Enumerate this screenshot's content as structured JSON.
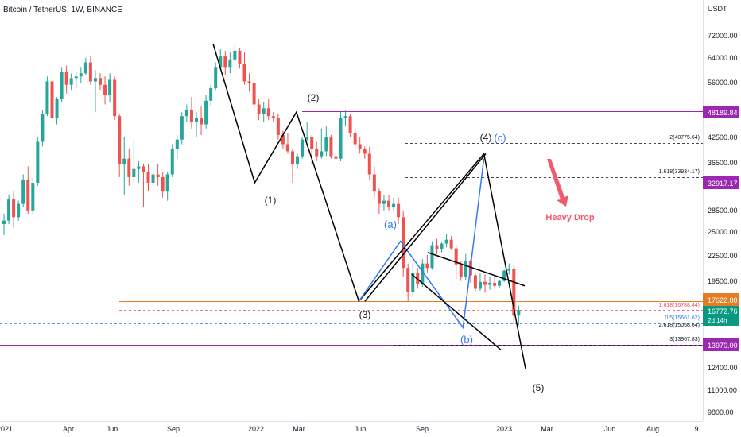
{
  "header": {
    "title": "Bitcoin / TetherUS, 1W, BINANCE"
  },
  "price_axis": {
    "currency": "USDT",
    "ticks": [
      "72000.00",
      "64000.00",
      "56000.00",
      "48189.84",
      "42500.00",
      "36500.00",
      "32917.17",
      "28500.00",
      "25000.00",
      "22500.00",
      "19500.00",
      "17622.00",
      "16772.76",
      "13970.00",
      "12400.00",
      "11000.00",
      "9800.00"
    ],
    "last_price": "16772.76",
    "countdown": "2d 14h"
  },
  "time_axis": {
    "ticks": [
      "2021",
      "Apr",
      "Jun",
      "Sep",
      "2022",
      "Mar",
      "Jun",
      "Sep",
      "2023",
      "Mar",
      "Jun",
      "Aug",
      "9"
    ]
  },
  "wave_labels": {
    "w1": "(1)",
    "w2": "(2)",
    "w3": "(3)",
    "w4": "(4)",
    "w5": "(5)",
    "wa": "(a)",
    "wb": "(b)",
    "wc": "(c)"
  },
  "fib_labels": {
    "f2": "2(40775.64)",
    "f1618_top": "1.618(33934.17)",
    "f1618_low": "1.618(16788.44)",
    "f05": "0.5(15661.62)",
    "f2618": "2.618(15058.64)",
    "f3": "3(13967.83)"
  },
  "annotation": {
    "text": "Heavy Drop"
  },
  "colors": {
    "up": "#26a69a",
    "down": "#ef5350",
    "wave": "#000000",
    "wave_blue": "#3179f5",
    "level_purple": "#9c27b0",
    "level_orange": "#e57b22",
    "annotation": "#f05a6e",
    "teal": "#089981"
  },
  "chart_data": {
    "type": "candlestick",
    "title": "Bitcoin / TetherUS, 1W, BINANCE",
    "y_unit": "USDT",
    "y_scale": "log",
    "ylim": [
      9400,
      80000
    ],
    "x_range": [
      "2021-01",
      "2023-09"
    ],
    "last_price": 16772.76,
    "horizontal_levels": [
      {
        "price": 48189.84,
        "color": "purple"
      },
      {
        "price": 32917.17,
        "color": "purple"
      },
      {
        "price": 17622.0,
        "color": "orange"
      },
      {
        "price": 13970.0,
        "color": "purple"
      }
    ],
    "fib_levels": [
      {
        "ratio": 2,
        "price": 40775.64
      },
      {
        "ratio": 1.618,
        "price": 33934.17
      },
      {
        "ratio": 1.618,
        "price": 16788.44
      },
      {
        "ratio": 0.5,
        "price": 15661.62
      },
      {
        "ratio": 2.618,
        "price": 15058.64
      },
      {
        "ratio": 3,
        "price": 13967.83
      }
    ],
    "wave_points": [
      {
        "label": "start",
        "date": "2021-11",
        "price": 69000
      },
      {
        "label": "(1)",
        "date": "2022-01",
        "price": 33000
      },
      {
        "label": "(2)",
        "date": "2022-03",
        "price": 48000
      },
      {
        "label": "(3)",
        "date": "2022-06",
        "price": 17600
      },
      {
        "label": "(4)",
        "date": "2022-12",
        "price": 38500
      },
      {
        "label": "(5)",
        "date": "2023-02",
        "price": 12300
      }
    ],
    "corrective_points": [
      {
        "label": "start",
        "date": "2022-06",
        "price": 17600
      },
      {
        "label": "(a)",
        "date": "2022-08",
        "price": 24200
      },
      {
        "label": "(b)",
        "date": "2022-11",
        "price": 15300
      },
      {
        "label": "(c)",
        "date": "2022-12",
        "price": 37500
      }
    ],
    "candles": [
      {
        "o": 26500,
        "h": 28000,
        "l": 25000,
        "c": 27000
      },
      {
        "o": 27000,
        "h": 31000,
        "l": 26500,
        "c": 30200
      },
      {
        "o": 30200,
        "h": 31500,
        "l": 26000,
        "c": 27500
      },
      {
        "o": 27500,
        "h": 30000,
        "l": 27000,
        "c": 29500
      },
      {
        "o": 29500,
        "h": 34500,
        "l": 29000,
        "c": 33500
      },
      {
        "o": 33500,
        "h": 36000,
        "l": 28000,
        "c": 28500
      },
      {
        "o": 28500,
        "h": 34000,
        "l": 28000,
        "c": 33000
      },
      {
        "o": 33000,
        "h": 42000,
        "l": 32500,
        "c": 41000
      },
      {
        "o": 41000,
        "h": 48500,
        "l": 40000,
        "c": 47500
      },
      {
        "o": 47500,
        "h": 58000,
        "l": 47000,
        "c": 56500
      },
      {
        "o": 56500,
        "h": 58000,
        "l": 44000,
        "c": 46500
      },
      {
        "o": 46500,
        "h": 52000,
        "l": 45000,
        "c": 51500
      },
      {
        "o": 51500,
        "h": 61000,
        "l": 50500,
        "c": 59500
      },
      {
        "o": 59500,
        "h": 61500,
        "l": 53000,
        "c": 55500
      },
      {
        "o": 55500,
        "h": 59000,
        "l": 54000,
        "c": 57500
      },
      {
        "o": 57500,
        "h": 59500,
        "l": 54500,
        "c": 58000
      },
      {
        "o": 58000,
        "h": 61000,
        "l": 56000,
        "c": 59000
      },
      {
        "o": 59000,
        "h": 64000,
        "l": 58500,
        "c": 62500
      },
      {
        "o": 62500,
        "h": 64500,
        "l": 55500,
        "c": 56500
      },
      {
        "o": 56500,
        "h": 60000,
        "l": 48000,
        "c": 57500
      },
      {
        "o": 57500,
        "h": 59000,
        "l": 54000,
        "c": 55500
      },
      {
        "o": 55500,
        "h": 58000,
        "l": 50000,
        "c": 52500
      },
      {
        "o": 52500,
        "h": 59000,
        "l": 50500,
        "c": 57000
      },
      {
        "o": 57000,
        "h": 58000,
        "l": 46000,
        "c": 47000
      },
      {
        "o": 47000,
        "h": 47500,
        "l": 34000,
        "c": 36500
      },
      {
        "o": 36500,
        "h": 42000,
        "l": 31000,
        "c": 37500
      },
      {
        "o": 37500,
        "h": 39500,
        "l": 32500,
        "c": 34000
      },
      {
        "o": 34000,
        "h": 41500,
        "l": 33000,
        "c": 35500
      },
      {
        "o": 35500,
        "h": 37000,
        "l": 33000,
        "c": 36000
      },
      {
        "o": 36000,
        "h": 36500,
        "l": 29000,
        "c": 35000
      },
      {
        "o": 35000,
        "h": 36500,
        "l": 31500,
        "c": 33000
      },
      {
        "o": 33000,
        "h": 35500,
        "l": 31000,
        "c": 34500
      },
      {
        "o": 34500,
        "h": 36500,
        "l": 32500,
        "c": 34000
      },
      {
        "o": 34000,
        "h": 35000,
        "l": 30500,
        "c": 31500
      },
      {
        "o": 31500,
        "h": 35000,
        "l": 30000,
        "c": 34500
      },
      {
        "o": 34500,
        "h": 40500,
        "l": 34000,
        "c": 39500
      },
      {
        "o": 39500,
        "h": 42500,
        "l": 37500,
        "c": 41500
      },
      {
        "o": 41500,
        "h": 48000,
        "l": 40500,
        "c": 47000
      },
      {
        "o": 47000,
        "h": 50000,
        "l": 45500,
        "c": 48500
      },
      {
        "o": 48500,
        "h": 52000,
        "l": 44000,
        "c": 45500
      },
      {
        "o": 45500,
        "h": 48000,
        "l": 42000,
        "c": 46500
      },
      {
        "o": 46500,
        "h": 49500,
        "l": 42500,
        "c": 45000
      },
      {
        "o": 45000,
        "h": 52500,
        "l": 44000,
        "c": 51000
      },
      {
        "o": 51000,
        "h": 55500,
        "l": 49500,
        "c": 54500
      },
      {
        "o": 54500,
        "h": 62500,
        "l": 54000,
        "c": 61000
      },
      {
        "o": 61000,
        "h": 67000,
        "l": 60000,
        "c": 64500
      },
      {
        "o": 64500,
        "h": 66500,
        "l": 58500,
        "c": 61000
      },
      {
        "o": 61000,
        "h": 66000,
        "l": 59000,
        "c": 63500
      },
      {
        "o": 63500,
        "h": 69000,
        "l": 62000,
        "c": 66500
      },
      {
        "o": 66500,
        "h": 67500,
        "l": 60500,
        "c": 62000
      },
      {
        "o": 62000,
        "h": 66000,
        "l": 55500,
        "c": 56500
      },
      {
        "o": 56500,
        "h": 59000,
        "l": 53500,
        "c": 56000
      },
      {
        "o": 56000,
        "h": 57500,
        "l": 48000,
        "c": 50000
      },
      {
        "o": 50000,
        "h": 51500,
        "l": 46000,
        "c": 47500
      },
      {
        "o": 47500,
        "h": 50500,
        "l": 45500,
        "c": 49000
      },
      {
        "o": 49000,
        "h": 51500,
        "l": 46000,
        "c": 47000
      },
      {
        "o": 47000,
        "h": 48000,
        "l": 45500,
        "c": 46500
      },
      {
        "o": 46500,
        "h": 47500,
        "l": 41500,
        "c": 42500
      },
      {
        "o": 42500,
        "h": 43500,
        "l": 39500,
        "c": 40500
      },
      {
        "o": 40500,
        "h": 43000,
        "l": 38500,
        "c": 39000
      },
      {
        "o": 39000,
        "h": 39500,
        "l": 33000,
        "c": 36500
      },
      {
        "o": 36500,
        "h": 38500,
        "l": 35500,
        "c": 38000
      },
      {
        "o": 38000,
        "h": 42000,
        "l": 37500,
        "c": 41500
      },
      {
        "o": 41500,
        "h": 45500,
        "l": 41000,
        "c": 42000
      },
      {
        "o": 42000,
        "h": 42500,
        "l": 36500,
        "c": 39500
      },
      {
        "o": 39500,
        "h": 41000,
        "l": 37000,
        "c": 38000
      },
      {
        "o": 38000,
        "h": 44000,
        "l": 37500,
        "c": 39000
      },
      {
        "o": 39000,
        "h": 44500,
        "l": 38000,
        "c": 42000
      },
      {
        "o": 42000,
        "h": 42500,
        "l": 37500,
        "c": 38000
      },
      {
        "o": 38000,
        "h": 39500,
        "l": 37000,
        "c": 37500
      },
      {
        "o": 37500,
        "h": 48000,
        "l": 37000,
        "c": 46500
      },
      {
        "o": 46500,
        "h": 48500,
        "l": 44500,
        "c": 47000
      },
      {
        "o": 47000,
        "h": 47500,
        "l": 42000,
        "c": 43000
      },
      {
        "o": 43000,
        "h": 43500,
        "l": 39500,
        "c": 40500
      },
      {
        "o": 40500,
        "h": 42000,
        "l": 38500,
        "c": 39500
      },
      {
        "o": 39500,
        "h": 40000,
        "l": 37500,
        "c": 38500
      },
      {
        "o": 38500,
        "h": 40000,
        "l": 33500,
        "c": 34500
      },
      {
        "o": 34500,
        "h": 36000,
        "l": 30500,
        "c": 31500
      },
      {
        "o": 31500,
        "h": 32000,
        "l": 28000,
        "c": 29500
      },
      {
        "o": 29500,
        "h": 31000,
        "l": 28500,
        "c": 30000
      },
      {
        "o": 30000,
        "h": 31000,
        "l": 28500,
        "c": 29000
      },
      {
        "o": 29000,
        "h": 30500,
        "l": 28500,
        "c": 29500
      },
      {
        "o": 29500,
        "h": 30500,
        "l": 26500,
        "c": 27500
      },
      {
        "o": 27500,
        "h": 28500,
        "l": 20000,
        "c": 21000
      },
      {
        "o": 21000,
        "h": 21500,
        "l": 17600,
        "c": 18500
      },
      {
        "o": 18500,
        "h": 21500,
        "l": 18000,
        "c": 20500
      },
      {
        "o": 20500,
        "h": 21000,
        "l": 18800,
        "c": 19300
      },
      {
        "o": 19300,
        "h": 22000,
        "l": 19000,
        "c": 21500
      },
      {
        "o": 21500,
        "h": 22500,
        "l": 20500,
        "c": 21000
      },
      {
        "o": 21000,
        "h": 24200,
        "l": 20800,
        "c": 23700
      },
      {
        "o": 23700,
        "h": 24500,
        "l": 22600,
        "c": 23200
      },
      {
        "o": 23200,
        "h": 24100,
        "l": 22800,
        "c": 23900
      },
      {
        "o": 23900,
        "h": 25200,
        "l": 23400,
        "c": 24400
      },
      {
        "o": 24400,
        "h": 24900,
        "l": 23100,
        "c": 23300
      },
      {
        "o": 23300,
        "h": 23600,
        "l": 19800,
        "c": 21400
      },
      {
        "o": 21400,
        "h": 21800,
        "l": 19600,
        "c": 20000
      },
      {
        "o": 20000,
        "h": 22600,
        "l": 19700,
        "c": 21800
      },
      {
        "o": 21800,
        "h": 22000,
        "l": 19400,
        "c": 20200
      },
      {
        "o": 20200,
        "h": 20500,
        "l": 18500,
        "c": 18800
      },
      {
        "o": 18800,
        "h": 20400,
        "l": 18600,
        "c": 19500
      },
      {
        "o": 19500,
        "h": 20300,
        "l": 18400,
        "c": 19200
      },
      {
        "o": 19200,
        "h": 20000,
        "l": 18700,
        "c": 19400
      },
      {
        "o": 19400,
        "h": 20000,
        "l": 19000,
        "c": 19100
      },
      {
        "o": 19100,
        "h": 19700,
        "l": 18900,
        "c": 19600
      },
      {
        "o": 19600,
        "h": 20800,
        "l": 19500,
        "c": 20700
      },
      {
        "o": 20700,
        "h": 21500,
        "l": 20300,
        "c": 20900
      },
      {
        "o": 20900,
        "h": 21400,
        "l": 15600,
        "c": 16300
      },
      {
        "o": 16300,
        "h": 17200,
        "l": 15500,
        "c": 16800
      }
    ]
  }
}
